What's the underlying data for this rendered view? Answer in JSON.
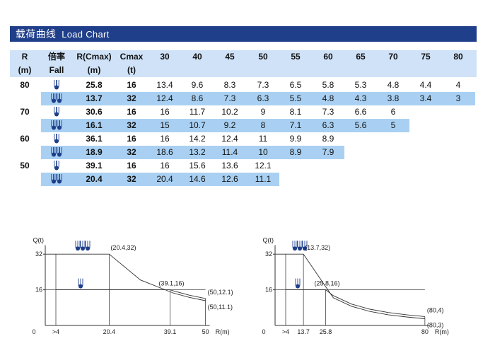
{
  "title": {
    "cn": "载荷曲线",
    "en": "Load Chart"
  },
  "table": {
    "header_top": [
      "R",
      "倍率",
      "R(Cmax)",
      "Cmax",
      "30",
      "40",
      "45",
      "50",
      "55",
      "60",
      "65",
      "70",
      "75",
      "80"
    ],
    "header_sub": [
      "(m)",
      "Fall",
      "(m)",
      "(t)"
    ],
    "groups": [
      {
        "r": "80",
        "rows": [
          {
            "fall": "single",
            "rcmax": "25.8",
            "cmax": "16",
            "loads": [
              "13.4",
              "9.6",
              "8.3",
              "7.3",
              "6.5",
              "5.8",
              "5.3",
              "4.8",
              "4.4",
              "4"
            ]
          },
          {
            "fall": "double",
            "rcmax": "13.7",
            "cmax": "32",
            "loads": [
              "12.4",
              "8.6",
              "7.3",
              "6.3",
              "5.5",
              "4.8",
              "4.3",
              "3.8",
              "3.4",
              "3"
            ]
          }
        ]
      },
      {
        "r": "70",
        "rows": [
          {
            "fall": "single",
            "rcmax": "30.6",
            "cmax": "16",
            "loads": [
              "16",
              "11.7",
              "10.2",
              "9",
              "8.1",
              "7.3",
              "6.6",
              "6"
            ]
          },
          {
            "fall": "double",
            "rcmax": "16.1",
            "cmax": "32",
            "loads": [
              "15",
              "10.7",
              "9.2",
              "8",
              "7.1",
              "6.3",
              "5.6",
              "5"
            ]
          }
        ]
      },
      {
        "r": "60",
        "rows": [
          {
            "fall": "single",
            "rcmax": "36.1",
            "cmax": "16",
            "loads": [
              "16",
              "14.2",
              "12.4",
              "11",
              "9.9",
              "8.9"
            ]
          },
          {
            "fall": "double",
            "rcmax": "18.9",
            "cmax": "32",
            "loads": [
              "18.6",
              "13.2",
              "11.4",
              "10",
              "8.9",
              "7.9"
            ]
          }
        ]
      },
      {
        "r": "50",
        "rows": [
          {
            "fall": "single",
            "rcmax": "39.1",
            "cmax": "16",
            "loads": [
              "16",
              "15.6",
              "13.6",
              "12.1"
            ]
          },
          {
            "fall": "double",
            "rcmax": "20.4",
            "cmax": "32",
            "loads": [
              "20.4",
              "14.6",
              "12.6",
              "11.1"
            ]
          }
        ]
      }
    ]
  },
  "chart_data": [
    {
      "type": "line",
      "ylabel": "Q(t)",
      "xlabel": "R(m)",
      "yticks": [
        "16",
        "32"
      ],
      "xticks": [
        "0",
        ">4",
        "20.4",
        "39.1",
        "50"
      ],
      "series": [
        {
          "fall": "double",
          "x": [
            4,
            20.4,
            30,
            40,
            45,
            50
          ],
          "y": [
            32,
            32,
            20.4,
            14.6,
            12.6,
            11.1
          ]
        },
        {
          "fall": "single",
          "x": [
            4,
            39.1,
            40,
            45,
            50
          ],
          "y": [
            16,
            16,
            15.6,
            13.6,
            12.1
          ]
        }
      ],
      "annotations": [
        "(20.4,32)",
        "(39.1,16)",
        "(50,12.1)",
        "(50,11.1)"
      ]
    },
    {
      "type": "line",
      "ylabel": "Q(t)",
      "xlabel": "R(m)",
      "yticks": [
        "16",
        "32"
      ],
      "xticks": [
        "0",
        ">4",
        "13.7",
        "25.8",
        "80"
      ],
      "series": [
        {
          "fall": "double",
          "x": [
            4,
            13.7,
            30,
            40,
            50,
            60,
            70,
            80
          ],
          "y": [
            32,
            32,
            12.4,
            8.6,
            6.3,
            4.8,
            3.8,
            3
          ]
        },
        {
          "fall": "single",
          "x": [
            4,
            25.8,
            30,
            40,
            50,
            60,
            70,
            80
          ],
          "y": [
            16,
            16,
            13.4,
            9.6,
            7.3,
            5.8,
            4.8,
            4
          ]
        }
      ],
      "annotations": [
        "(13.7,32)",
        "(25.8,16)",
        "(80,4)",
        "(80,3)"
      ]
    }
  ]
}
